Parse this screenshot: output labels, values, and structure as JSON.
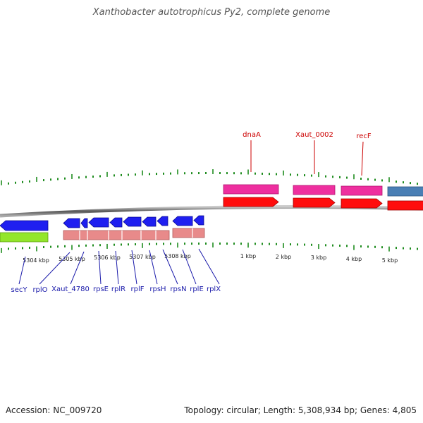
{
  "title": "Xanthobacter autotrophicus Py2, complete genome",
  "footer": {
    "accession": "Accession: NC_009720",
    "info": "Topology: circular; Length: 5,308,934 bp; Genes: 4,805"
  },
  "colors": {
    "gene_pink": "#ee2f9f",
    "cds_red": "#ff0d0d",
    "gene_blue": "#1f1ff0",
    "cds_salmon": "#e88a8a",
    "gene_green": "#93e62a",
    "gene_steelblue": "#4a7fb5",
    "tick_green": "#1e8c1e",
    "label_red": "#cc0000",
    "label_blue": "#1a1aaa",
    "backbone_gray": "#777777"
  },
  "scale_labels": [
    "5304 kbp",
    "5305 kbp",
    "5306 kbp",
    "5307 kbp",
    "5308 kbp",
    "1 kbp",
    "2 kbp",
    "3 kbp",
    "4 kbp",
    "5 kbp"
  ],
  "upper_gene_labels": [
    "dnaA",
    "Xaut_0002",
    "recF"
  ],
  "lower_gene_labels": [
    "secY",
    "rplO",
    "Xaut_4780",
    "rpsE",
    "rplR",
    "rplF",
    "rpsH",
    "rpsN",
    "rplE",
    "rplX"
  ]
}
